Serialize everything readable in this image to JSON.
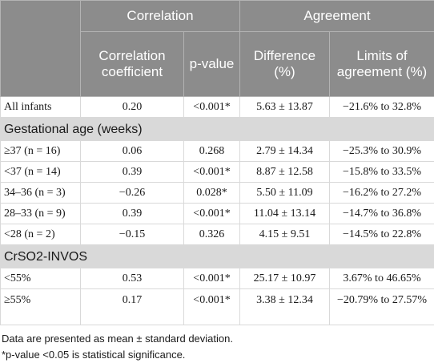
{
  "header": {
    "correlation": "Correlation",
    "agreement": "Agreement",
    "correlation_coefficient": "Correlation coefficient",
    "p_value": "p-value",
    "difference": "Difference (%)",
    "limits": "Limits of agreement (%)"
  },
  "rows": {
    "all_infants": {
      "label": "All infants",
      "coef": "0.20",
      "p": "<0.001*",
      "diff": "5.63 ± 13.87",
      "limits": "−21.6% to 32.8%"
    },
    "ge37": {
      "label": "≥37 (n = 16)",
      "coef": "0.06",
      "p": "0.268",
      "diff": "2.79 ± 14.34",
      "limits": "−25.3% to 30.9%"
    },
    "lt37": {
      "label": "<37 (n = 14)",
      "coef": "0.39",
      "p": "<0.001*",
      "diff": "8.87 ± 12.58",
      "limits": "−15.8% to 33.5%"
    },
    "r34_36": {
      "label": "34–36 (n = 3)",
      "coef": "−0.26",
      "p": "0.028*",
      "diff": "5.50 ± 11.09",
      "limits": "−16.2% to 27.2%"
    },
    "r28_33": {
      "label": "28–33 (n = 9)",
      "coef": "0.39",
      "p": "<0.001*",
      "diff": "11.04 ± 13.14",
      "limits": "−14.7% to 36.8%"
    },
    "lt28": {
      "label": "<28 (n = 2)",
      "coef": "−0.15",
      "p": "0.326",
      "diff": "4.15 ± 9.51",
      "limits": "−14.5% to 22.8%"
    },
    "lt55": {
      "label": "<55%",
      "coef": "0.53",
      "p": "<0.001*",
      "diff": "25.17 ± 10.97",
      "limits": "3.67% to 46.65%"
    },
    "ge55": {
      "label": "≥55%",
      "coef": "0.17",
      "p": "<0.001*",
      "diff": "3.38 ± 12.34",
      "limits": "−20.79% to 27.57%"
    }
  },
  "sections": {
    "gestational_age": "Gestational age (weeks)",
    "crso2_invos": "CrSO2-INVOS"
  },
  "footnotes": {
    "line1": "Data are presented as mean ± standard deviation.",
    "line2": "*p-value <0.05 is statistical significance."
  }
}
